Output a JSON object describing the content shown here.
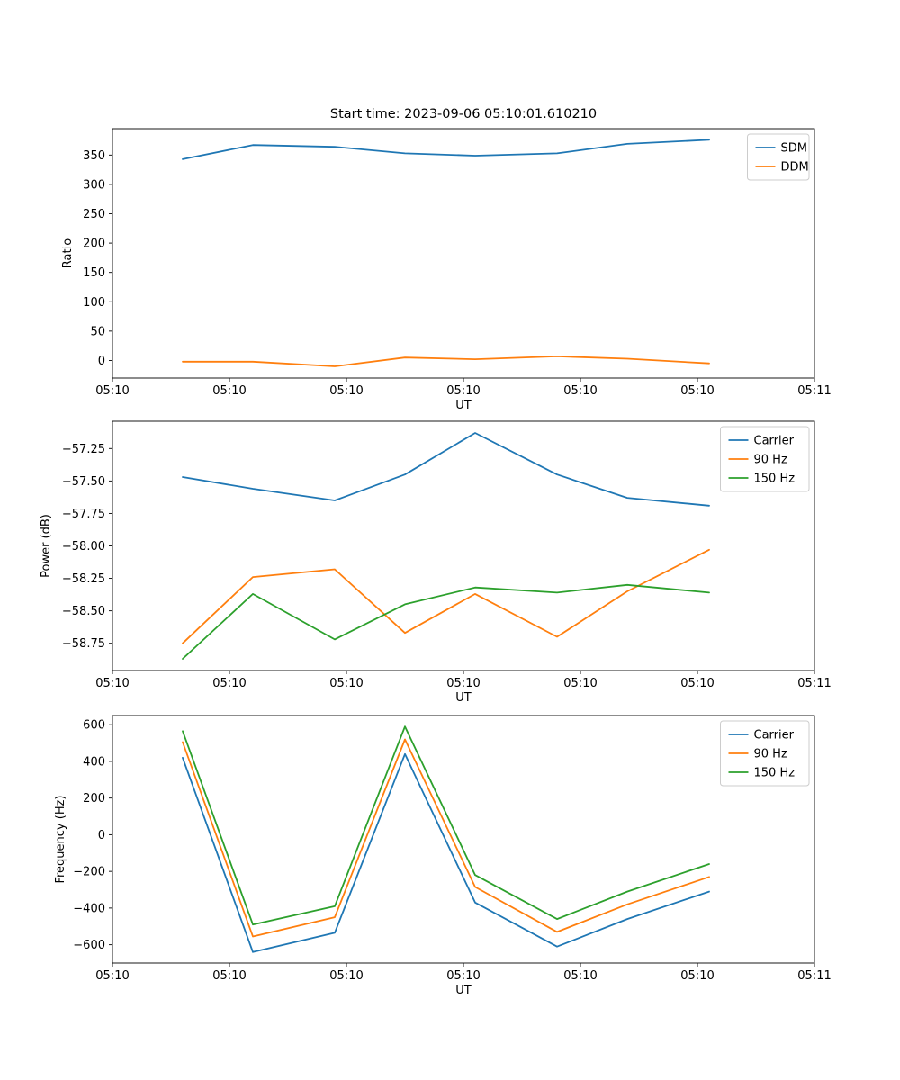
{
  "figure": {
    "background": "#ffffff"
  },
  "palette": {
    "blue": "#1f77b4",
    "orange": "#ff7f0e",
    "green": "#2ca02c",
    "axis": "#000000",
    "legend_border": "#cccccc"
  },
  "chart_data": [
    {
      "type": "line",
      "title": "Start time: 2023-09-06 05:10:01.610210",
      "xlabel": "UT",
      "ylabel": "Ratio",
      "grid": false,
      "legend_position": "upper right",
      "x_seconds": [
        6,
        12,
        19,
        25,
        31,
        38,
        44,
        51
      ],
      "xlim": [
        0,
        60
      ],
      "ylim": [
        -30,
        395
      ],
      "xticks": [
        0,
        10,
        20,
        30,
        40,
        50,
        60
      ],
      "xtick_labels": [
        "05:10",
        "05:10",
        "05:10",
        "05:10",
        "05:10",
        "05:10",
        "05:11"
      ],
      "yticks": [
        0,
        50,
        100,
        150,
        200,
        250,
        300,
        350
      ],
      "ytick_labels": [
        "0",
        "50",
        "100",
        "150",
        "200",
        "250",
        "300",
        "350"
      ],
      "series": [
        {
          "name": "SDM",
          "color": "#1f77b4",
          "values": [
            343,
            367,
            364,
            353,
            349,
            353,
            369,
            376
          ]
        },
        {
          "name": "DDM",
          "color": "#ff7f0e",
          "values": [
            -2,
            -2,
            -10,
            5,
            2,
            7,
            3,
            -5
          ]
        }
      ]
    },
    {
      "type": "line",
      "title": "",
      "xlabel": "UT",
      "ylabel": "Power (dB)",
      "grid": false,
      "legend_position": "upper right",
      "x_seconds": [
        6,
        12,
        19,
        25,
        31,
        38,
        44,
        51
      ],
      "xlim": [
        0,
        60
      ],
      "ylim": [
        -58.96,
        -57.04
      ],
      "xticks": [
        0,
        10,
        20,
        30,
        40,
        50,
        60
      ],
      "xtick_labels": [
        "05:10",
        "05:10",
        "05:10",
        "05:10",
        "05:10",
        "05:10",
        "05:11"
      ],
      "yticks": [
        -58.75,
        -58.5,
        -58.25,
        -58.0,
        -57.75,
        -57.5,
        -57.25
      ],
      "ytick_labels": [
        "−58.75",
        "−58.50",
        "−58.25",
        "−58.00",
        "−57.75",
        "−57.50",
        "−57.25"
      ],
      "series": [
        {
          "name": "Carrier",
          "color": "#1f77b4",
          "values": [
            -57.47,
            -57.56,
            -57.65,
            -57.45,
            -57.13,
            -57.45,
            -57.63,
            -57.69
          ]
        },
        {
          "name": "90 Hz",
          "color": "#ff7f0e",
          "values": [
            -58.75,
            -58.24,
            -58.18,
            -58.67,
            -58.37,
            -58.7,
            -58.35,
            -58.03
          ]
        },
        {
          "name": "150 Hz",
          "color": "#2ca02c",
          "values": [
            -58.87,
            -58.37,
            -58.72,
            -58.45,
            -58.32,
            -58.36,
            -58.3,
            -58.36
          ]
        }
      ]
    },
    {
      "type": "line",
      "title": "",
      "xlabel": "UT",
      "ylabel": "Frequency (Hz)",
      "grid": false,
      "legend_position": "upper right",
      "x_seconds": [
        6,
        12,
        19,
        25,
        31,
        38,
        44,
        51
      ],
      "xlim": [
        0,
        60
      ],
      "ylim": [
        -700,
        650
      ],
      "xticks": [
        0,
        10,
        20,
        30,
        40,
        50,
        60
      ],
      "xtick_labels": [
        "05:10",
        "05:10",
        "05:10",
        "05:10",
        "05:10",
        "05:10",
        "05:11"
      ],
      "yticks": [
        -600,
        -400,
        -200,
        0,
        200,
        400,
        600
      ],
      "ytick_labels": [
        "−600",
        "−400",
        "−200",
        "0",
        "200",
        "400",
        "600"
      ],
      "series": [
        {
          "name": "Carrier",
          "color": "#1f77b4",
          "values": [
            420,
            -640,
            -535,
            440,
            -370,
            -610,
            -460,
            -310
          ]
        },
        {
          "name": "90 Hz",
          "color": "#ff7f0e",
          "values": [
            505,
            -555,
            -450,
            520,
            -285,
            -530,
            -380,
            -230
          ]
        },
        {
          "name": "150 Hz",
          "color": "#2ca02c",
          "values": [
            565,
            -490,
            -390,
            590,
            -220,
            -460,
            -310,
            -160
          ]
        }
      ]
    }
  ]
}
